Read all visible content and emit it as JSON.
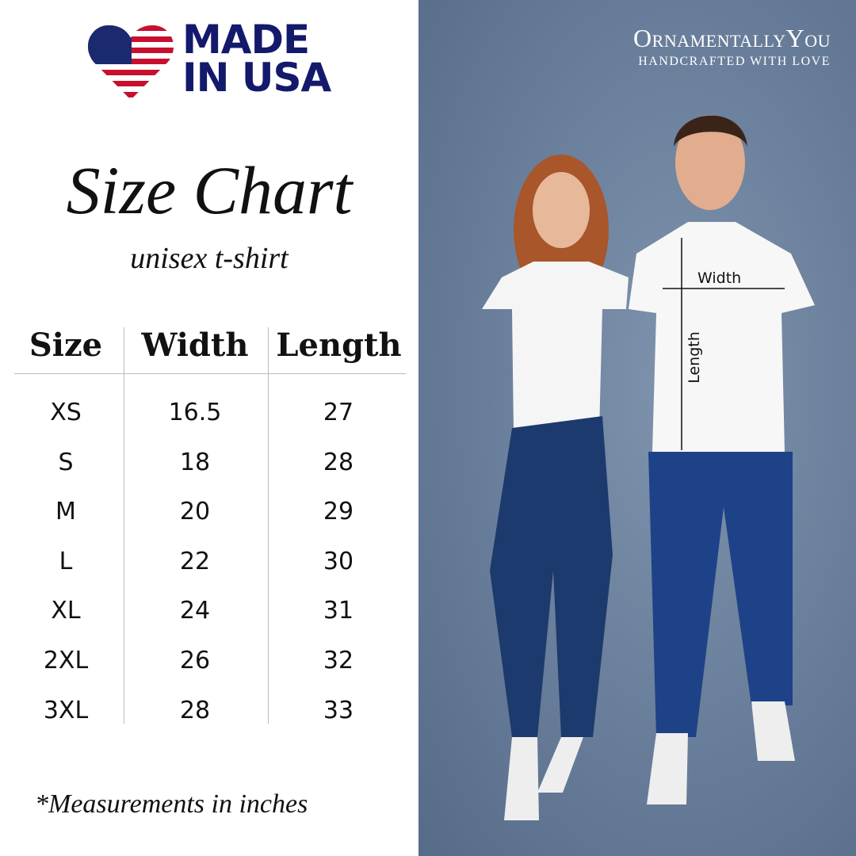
{
  "badge": {
    "line1": "MADE",
    "line2": "IN USA",
    "flag_colors": {
      "blue": "#1b2a6e",
      "red": "#c8102e"
    },
    "text_color": "#13196b"
  },
  "title": "Size Chart",
  "subtitle": "unisex t-shirt",
  "table": {
    "headers": [
      "Size",
      "Width",
      "Length"
    ],
    "rows": [
      [
        "XS",
        "16.5",
        "27"
      ],
      [
        "S",
        "18",
        "28"
      ],
      [
        "M",
        "20",
        "29"
      ],
      [
        "L",
        "22",
        "30"
      ],
      [
        "XL",
        "24",
        "31"
      ],
      [
        "2XL",
        "26",
        "32"
      ],
      [
        "3XL",
        "28",
        "33"
      ]
    ]
  },
  "note": "*Measurements in inches",
  "brand": {
    "name": "OrnamentallyYou",
    "tagline": "HANDCRAFTED WITH LOVE"
  },
  "photo": {
    "width_label": "Width",
    "length_label": "Length",
    "background": "#6a7f9b"
  }
}
